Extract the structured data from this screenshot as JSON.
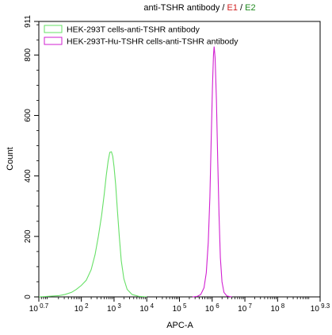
{
  "chart_data": {
    "type": "line",
    "title": {
      "parts": [
        {
          "text": "anti-TSHR antibody / ",
          "color": "#000000"
        },
        {
          "text": "E1",
          "color": "#d11f1f"
        },
        {
          "text": " / ",
          "color": "#000000"
        },
        {
          "text": "E2",
          "color": "#1f8a1f"
        }
      ]
    },
    "xlabel": "APC-A",
    "ylabel": "Count",
    "x_scale": "log",
    "xlim": [
      0.7,
      9.3
    ],
    "ylim": [
      0,
      911
    ],
    "x_ticks": [
      {
        "exp": 0.7,
        "base": "10",
        "sup": "0.7"
      },
      {
        "exp": 2,
        "base": "10",
        "sup": "2"
      },
      {
        "exp": 3,
        "base": "10",
        "sup": "3"
      },
      {
        "exp": 4,
        "base": "10",
        "sup": "4"
      },
      {
        "exp": 5,
        "base": "10",
        "sup": "5"
      },
      {
        "exp": 6,
        "base": "10",
        "sup": "6"
      },
      {
        "exp": 7,
        "base": "10",
        "sup": "7"
      },
      {
        "exp": 8,
        "base": "10",
        "sup": "8"
      },
      {
        "exp": 9.3,
        "base": "10",
        "sup": "9.3"
      }
    ],
    "y_ticks": [
      "0",
      "200",
      "400",
      "600",
      "800",
      "911"
    ],
    "y_tick_values": [
      0,
      200,
      400,
      600,
      800,
      911
    ],
    "legend_position": "top-left",
    "series": [
      {
        "name": "HEK-293T cells-anti-TSHR antibody",
        "color": "#66e066",
        "points": [
          [
            0.7,
            0
          ],
          [
            1.0,
            2
          ],
          [
            1.3,
            4
          ],
          [
            1.5,
            8
          ],
          [
            1.7,
            15
          ],
          [
            1.85,
            25
          ],
          [
            2.0,
            38
          ],
          [
            2.15,
            55
          ],
          [
            2.3,
            90
          ],
          [
            2.42,
            140
          ],
          [
            2.52,
            200
          ],
          [
            2.62,
            270
          ],
          [
            2.7,
            340
          ],
          [
            2.76,
            400
          ],
          [
            2.82,
            450
          ],
          [
            2.87,
            478
          ],
          [
            2.92,
            480
          ],
          [
            2.96,
            465
          ],
          [
            3.0,
            430
          ],
          [
            3.05,
            370
          ],
          [
            3.1,
            290
          ],
          [
            3.16,
            200
          ],
          [
            3.22,
            120
          ],
          [
            3.3,
            60
          ],
          [
            3.4,
            25
          ],
          [
            3.55,
            8
          ],
          [
            3.75,
            2
          ],
          [
            4.0,
            0
          ]
        ]
      },
      {
        "name": "HEK-293T-Hu-TSHR cells-anti-TSHR antibody",
        "color": "#d11fd1",
        "points": [
          [
            5.4,
            0
          ],
          [
            5.55,
            2
          ],
          [
            5.65,
            8
          ],
          [
            5.75,
            30
          ],
          [
            5.82,
            80
          ],
          [
            5.88,
            180
          ],
          [
            5.93,
            330
          ],
          [
            5.97,
            520
          ],
          [
            6.01,
            700
          ],
          [
            6.04,
            800
          ],
          [
            6.06,
            828
          ],
          [
            6.09,
            790
          ],
          [
            6.13,
            650
          ],
          [
            6.17,
            450
          ],
          [
            6.21,
            270
          ],
          [
            6.25,
            130
          ],
          [
            6.3,
            50
          ],
          [
            6.36,
            15
          ],
          [
            6.45,
            3
          ],
          [
            6.6,
            0
          ]
        ]
      }
    ]
  }
}
